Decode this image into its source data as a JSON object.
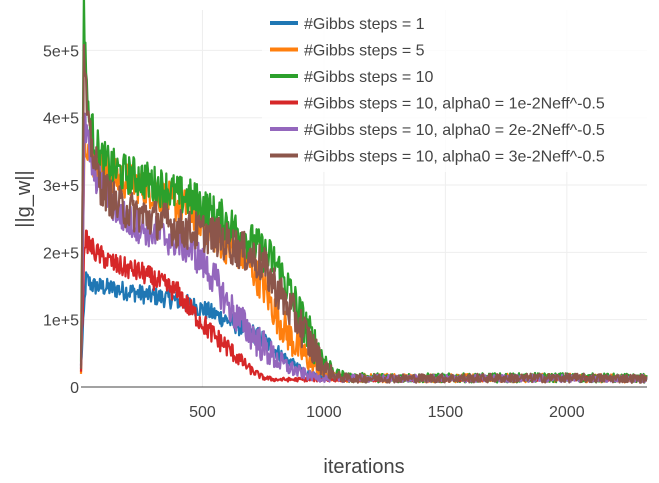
{
  "chart_data": {
    "type": "line",
    "title": "",
    "xlabel": "iterations",
    "ylabel": "||g_w||",
    "xlim": [
      0,
      2330
    ],
    "ylim": [
      0,
      560000
    ],
    "x_ticks": [
      500,
      1000,
      1500,
      2000
    ],
    "x_tick_labels": [
      "500",
      "1000",
      "1500",
      "2000"
    ],
    "y_ticks": [
      0,
      100000,
      200000,
      300000,
      400000,
      500000
    ],
    "y_tick_labels": [
      "0",
      "1e+5",
      "2e+5",
      "3e+5",
      "4e+5",
      "5e+5"
    ],
    "grid": true,
    "legend_position": "top-right",
    "series": [
      {
        "name": "#Gibbs steps = 1",
        "color": "#1f77b4",
        "points": [
          [
            0,
            30000
          ],
          [
            20,
            160000
          ],
          [
            50,
            150000
          ],
          [
            100,
            148000
          ],
          [
            150,
            145000
          ],
          [
            200,
            142000
          ],
          [
            250,
            138000
          ],
          [
            300,
            135000
          ],
          [
            350,
            132000
          ],
          [
            400,
            128000
          ],
          [
            450,
            122000
          ],
          [
            500,
            116000
          ],
          [
            550,
            108000
          ],
          [
            600,
            100000
          ],
          [
            650,
            90000
          ],
          [
            700,
            82000
          ],
          [
            750,
            70000
          ],
          [
            800,
            55000
          ],
          [
            850,
            40000
          ],
          [
            900,
            27000
          ],
          [
            950,
            18000
          ],
          [
            1000,
            14000
          ],
          [
            1050,
            13000
          ],
          [
            1500,
            13000
          ],
          [
            2000,
            13500
          ],
          [
            2330,
            12500
          ]
        ],
        "noise": 14000
      },
      {
        "name": "#Gibbs steps = 5",
        "color": "#ff7f0e",
        "points": [
          [
            0,
            30000
          ],
          [
            15,
            380000
          ],
          [
            40,
            340000
          ],
          [
            100,
            320000
          ],
          [
            150,
            310000
          ],
          [
            200,
            305000
          ],
          [
            300,
            290000
          ],
          [
            400,
            270000
          ],
          [
            450,
            265000
          ],
          [
            500,
            245000
          ],
          [
            550,
            225000
          ],
          [
            600,
            210000
          ],
          [
            650,
            200000
          ],
          [
            700,
            180000
          ],
          [
            750,
            150000
          ],
          [
            800,
            110000
          ],
          [
            850,
            80000
          ],
          [
            900,
            55000
          ],
          [
            950,
            35000
          ],
          [
            1000,
            20000
          ],
          [
            1050,
            14000
          ],
          [
            1500,
            13000
          ],
          [
            2000,
            13500
          ],
          [
            2330,
            12500
          ]
        ],
        "noise": 28000
      },
      {
        "name": "#Gibbs steps = 10",
        "color": "#2ca02c",
        "points": [
          [
            0,
            30000
          ],
          [
            12,
            560000
          ],
          [
            30,
            400000
          ],
          [
            80,
            340000
          ],
          [
            150,
            320000
          ],
          [
            250,
            310000
          ],
          [
            300,
            300000
          ],
          [
            350,
            295000
          ],
          [
            400,
            285000
          ],
          [
            450,
            280000
          ],
          [
            500,
            270000
          ],
          [
            550,
            255000
          ],
          [
            600,
            245000
          ],
          [
            650,
            230000
          ],
          [
            700,
            215000
          ],
          [
            750,
            200000
          ],
          [
            800,
            185000
          ],
          [
            850,
            150000
          ],
          [
            900,
            110000
          ],
          [
            950,
            70000
          ],
          [
            1000,
            40000
          ],
          [
            1050,
            18000
          ],
          [
            1100,
            14000
          ],
          [
            1500,
            13500
          ],
          [
            2000,
            14000
          ],
          [
            2330,
            13000
          ]
        ],
        "noise": 30000
      },
      {
        "name": "#Gibbs steps = 10, alpha0 = 1e-2Neff^-0.5",
        "color": "#d62728",
        "points": [
          [
            0,
            30000
          ],
          [
            15,
            220000
          ],
          [
            60,
            200000
          ],
          [
            100,
            190000
          ],
          [
            150,
            180000
          ],
          [
            200,
            175000
          ],
          [
            250,
            170000
          ],
          [
            300,
            160000
          ],
          [
            350,
            150000
          ],
          [
            400,
            140000
          ],
          [
            450,
            115000
          ],
          [
            500,
            95000
          ],
          [
            550,
            75000
          ],
          [
            600,
            60000
          ],
          [
            650,
            42000
          ],
          [
            700,
            25000
          ],
          [
            750,
            14000
          ],
          [
            800,
            11000
          ],
          [
            1000,
            11000
          ],
          [
            1500,
            12000
          ],
          [
            2000,
            12500
          ],
          [
            2330,
            12000
          ]
        ],
        "noise": 16000
      },
      {
        "name": "#Gibbs steps = 10, alpha0 = 2e-2Neff^-0.5",
        "color": "#9467bd",
        "points": [
          [
            0,
            30000
          ],
          [
            15,
            390000
          ],
          [
            50,
            320000
          ],
          [
            100,
            290000
          ],
          [
            150,
            260000
          ],
          [
            200,
            245000
          ],
          [
            300,
            230000
          ],
          [
            400,
            215000
          ],
          [
            450,
            205000
          ],
          [
            500,
            185000
          ],
          [
            550,
            160000
          ],
          [
            600,
            125000
          ],
          [
            650,
            100000
          ],
          [
            700,
            80000
          ],
          [
            750,
            60000
          ],
          [
            800,
            42000
          ],
          [
            850,
            30000
          ],
          [
            900,
            22000
          ],
          [
            950,
            16000
          ],
          [
            1000,
            13000
          ],
          [
            1500,
            12500
          ],
          [
            2000,
            13000
          ],
          [
            2330,
            12500
          ]
        ],
        "noise": 26000
      },
      {
        "name": "#Gibbs steps = 10, alpha0 = 3e-2Neff^-0.5",
        "color": "#8c564b",
        "points": [
          [
            0,
            30000
          ],
          [
            12,
            490000
          ],
          [
            30,
            380000
          ],
          [
            80,
            300000
          ],
          [
            150,
            270000
          ],
          [
            250,
            255000
          ],
          [
            350,
            245000
          ],
          [
            400,
            235000
          ],
          [
            500,
            230000
          ],
          [
            550,
            225000
          ],
          [
            600,
            215000
          ],
          [
            650,
            205000
          ],
          [
            700,
            195000
          ],
          [
            750,
            180000
          ],
          [
            800,
            150000
          ],
          [
            850,
            120000
          ],
          [
            900,
            95000
          ],
          [
            950,
            60000
          ],
          [
            1000,
            30000
          ],
          [
            1050,
            16000
          ],
          [
            1100,
            13000
          ],
          [
            1500,
            13000
          ],
          [
            2000,
            13500
          ],
          [
            2330,
            12500
          ]
        ],
        "noise": 30000
      }
    ]
  }
}
